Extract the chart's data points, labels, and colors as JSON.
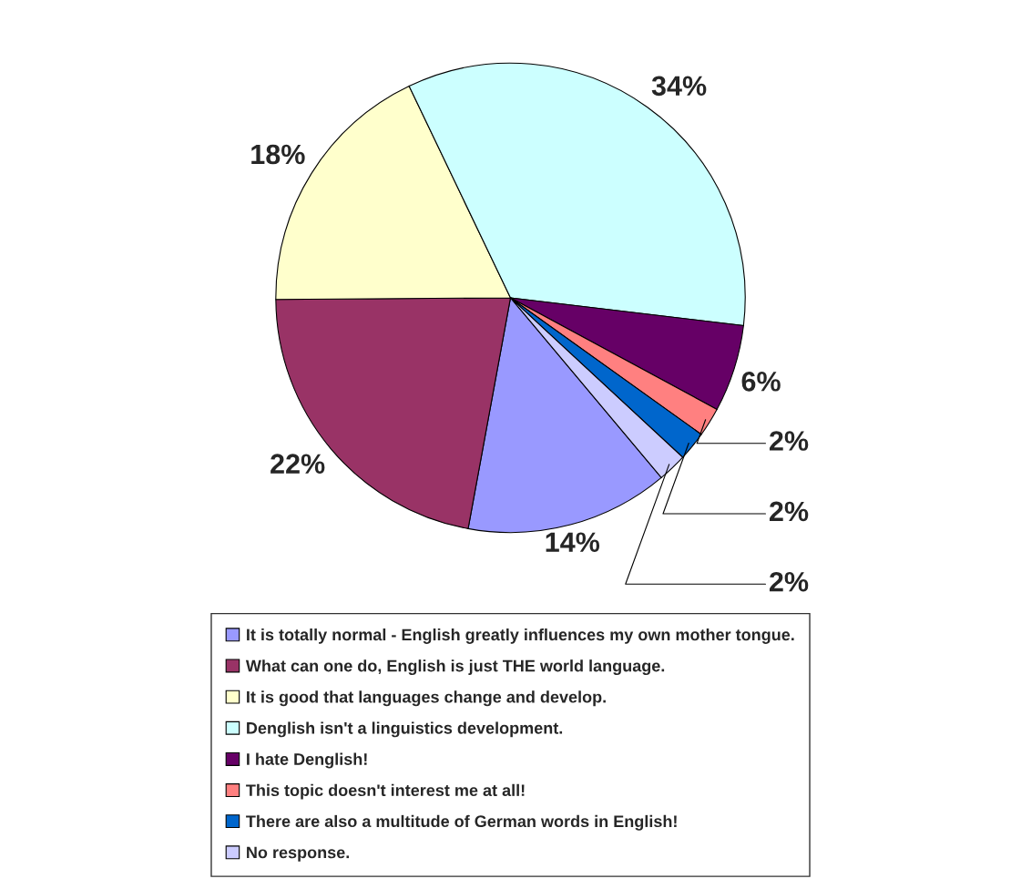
{
  "chart_data": {
    "type": "pie",
    "categories": [
      "It is totally normal - English greatly influences my own mother tongue.",
      "What can one do, English is just THE world language.",
      "It is good that languages change and develop.",
      "Denglish isn't a linguistics development.",
      "I hate Denglish!",
      "This topic doesn't interest me at all!",
      "There are also a multitude of German words in English!",
      "No response."
    ],
    "values": [
      14,
      22,
      18,
      34,
      6,
      2,
      2,
      2
    ],
    "colors": [
      "#9999ff",
      "#993366",
      "#ffffcc",
      "#ccffff",
      "#660066",
      "#ff8080",
      "#0066cc",
      "#ccccff"
    ],
    "value_labels": [
      "14%",
      "22%",
      "18%",
      "34%",
      "6%",
      "2%",
      "2%",
      "2%"
    ],
    "legend": "bottom"
  }
}
